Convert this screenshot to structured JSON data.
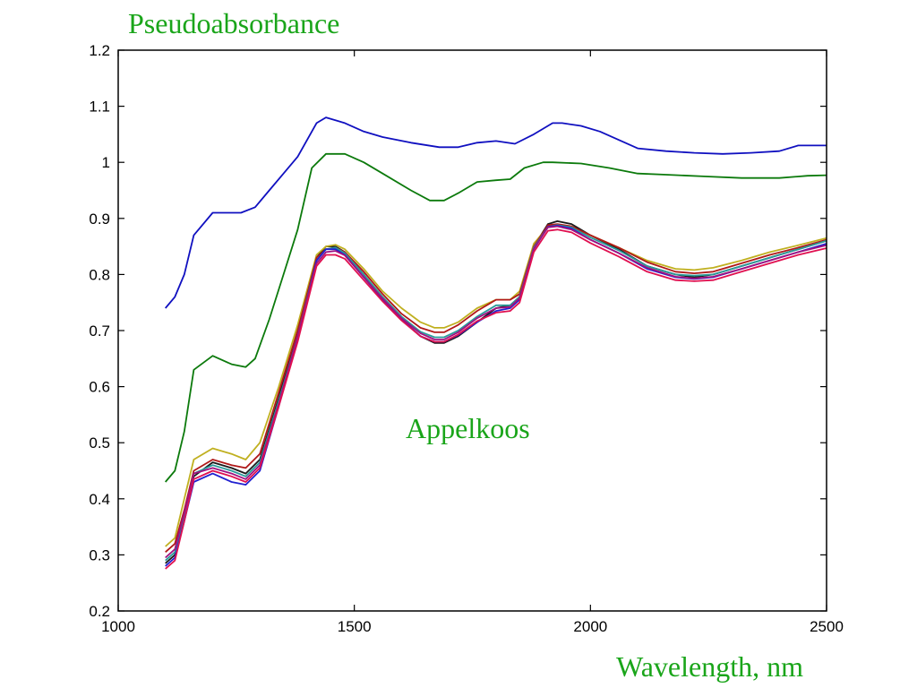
{
  "chart_data": {
    "type": "line",
    "ylabel": "Pseudoabsorbance",
    "xlabel": "Wavelength, nm",
    "annotation": "Appelkoos",
    "xlim": [
      1000,
      2500
    ],
    "ylim": [
      0.2,
      1.2
    ],
    "x_ticks": [
      "1000",
      "1500",
      "2000",
      "2500"
    ],
    "y_ticks": [
      "0.2",
      "0.3",
      "0.4",
      "0.5",
      "0.6",
      "0.7",
      "0.8",
      "0.9",
      "1",
      "1.1",
      "1.2"
    ],
    "x_tick_values": [
      1000,
      1500,
      2000,
      2500
    ],
    "y_tick_values": [
      0.2,
      0.3,
      0.4,
      0.5,
      0.6,
      0.7,
      0.8,
      0.9,
      1.0,
      1.1,
      1.2
    ],
    "grid": false,
    "colors": {
      "text_accent": "#1aa51a",
      "axis": "#000000"
    },
    "series": [
      {
        "color": "#1010c0",
        "x": [
          1100,
          1120,
          1140,
          1160,
          1200,
          1260,
          1290,
          1320,
          1350,
          1380,
          1420,
          1440,
          1480,
          1520,
          1560,
          1620,
          1680,
          1720,
          1760,
          1800,
          1840,
          1880,
          1920,
          1940,
          1980,
          2020,
          2060,
          2100,
          2160,
          2220,
          2280,
          2340,
          2400,
          2440,
          2500
        ],
        "y": [
          0.74,
          0.76,
          0.8,
          0.87,
          0.91,
          0.91,
          0.92,
          0.95,
          0.98,
          1.01,
          1.07,
          1.08,
          1.07,
          1.055,
          1.045,
          1.035,
          1.027,
          1.027,
          1.035,
          1.038,
          1.033,
          1.05,
          1.07,
          1.07,
          1.065,
          1.055,
          1.04,
          1.025,
          1.02,
          1.017,
          1.015,
          1.017,
          1.02,
          1.03,
          1.03
        ]
      },
      {
        "color": "#0c7a0c",
        "x": [
          1100,
          1120,
          1140,
          1160,
          1200,
          1240,
          1270,
          1290,
          1320,
          1350,
          1380,
          1410,
          1440,
          1480,
          1520,
          1560,
          1620,
          1660,
          1690,
          1720,
          1760,
          1800,
          1830,
          1860,
          1900,
          1920,
          1980,
          2040,
          2100,
          2160,
          2240,
          2320,
          2400,
          2460,
          2500
        ],
        "y": [
          0.43,
          0.45,
          0.52,
          0.63,
          0.655,
          0.64,
          0.635,
          0.65,
          0.72,
          0.8,
          0.88,
          0.99,
          1.015,
          1.015,
          1.0,
          0.98,
          0.95,
          0.932,
          0.932,
          0.945,
          0.965,
          0.968,
          0.97,
          0.99,
          1.0,
          1.0,
          0.998,
          0.99,
          0.98,
          0.978,
          0.975,
          0.972,
          0.972,
          0.976,
          0.977
        ]
      },
      {
        "color": "#1a1a1a",
        "x": [
          1100,
          1120,
          1140,
          1160,
          1200,
          1240,
          1270,
          1300,
          1340,
          1380,
          1420,
          1440,
          1460,
          1480,
          1520,
          1560,
          1600,
          1640,
          1670,
          1690,
          1720,
          1760,
          1800,
          1830,
          1850,
          1880,
          1910,
          1930,
          1960,
          2000,
          2060,
          2120,
          2180,
          2220,
          2260,
          2320,
          2380,
          2440,
          2500
        ],
        "y": [
          0.285,
          0.3,
          0.37,
          0.44,
          0.465,
          0.455,
          0.445,
          0.47,
          0.58,
          0.7,
          0.83,
          0.85,
          0.85,
          0.84,
          0.8,
          0.755,
          0.72,
          0.69,
          0.678,
          0.678,
          0.69,
          0.715,
          0.74,
          0.745,
          0.76,
          0.85,
          0.89,
          0.895,
          0.89,
          0.87,
          0.845,
          0.815,
          0.8,
          0.795,
          0.8,
          0.815,
          0.83,
          0.845,
          0.86
        ]
      },
      {
        "color": "#c0b020",
        "x": [
          1100,
          1120,
          1140,
          1160,
          1200,
          1240,
          1270,
          1300,
          1340,
          1380,
          1420,
          1440,
          1460,
          1480,
          1520,
          1560,
          1600,
          1640,
          1670,
          1690,
          1720,
          1760,
          1800,
          1830,
          1850,
          1880,
          1910,
          1930,
          1960,
          2000,
          2060,
          2120,
          2180,
          2220,
          2260,
          2320,
          2380,
          2440,
          2500
        ],
        "y": [
          0.315,
          0.33,
          0.4,
          0.47,
          0.49,
          0.48,
          0.47,
          0.5,
          0.6,
          0.71,
          0.835,
          0.85,
          0.853,
          0.845,
          0.81,
          0.77,
          0.74,
          0.715,
          0.705,
          0.705,
          0.715,
          0.74,
          0.755,
          0.755,
          0.77,
          0.855,
          0.885,
          0.888,
          0.885,
          0.87,
          0.848,
          0.825,
          0.81,
          0.808,
          0.812,
          0.825,
          0.84,
          0.852,
          0.865
        ]
      },
      {
        "color": "#b01818",
        "x": [
          1100,
          1120,
          1140,
          1160,
          1200,
          1240,
          1270,
          1300,
          1340,
          1380,
          1420,
          1440,
          1460,
          1480,
          1520,
          1560,
          1600,
          1640,
          1670,
          1690,
          1720,
          1760,
          1800,
          1830,
          1850,
          1880,
          1910,
          1930,
          1960,
          2000,
          2060,
          2120,
          2180,
          2220,
          2260,
          2320,
          2380,
          2440,
          2500
        ],
        "y": [
          0.305,
          0.32,
          0.38,
          0.45,
          0.47,
          0.46,
          0.455,
          0.48,
          0.59,
          0.7,
          0.83,
          0.845,
          0.848,
          0.84,
          0.805,
          0.765,
          0.73,
          0.705,
          0.697,
          0.697,
          0.71,
          0.735,
          0.755,
          0.755,
          0.765,
          0.85,
          0.888,
          0.89,
          0.886,
          0.87,
          0.848,
          0.822,
          0.805,
          0.802,
          0.805,
          0.82,
          0.835,
          0.848,
          0.862
        ]
      },
      {
        "color": "#2a9a9a",
        "x": [
          1100,
          1120,
          1140,
          1160,
          1200,
          1240,
          1270,
          1300,
          1340,
          1380,
          1420,
          1440,
          1460,
          1480,
          1520,
          1560,
          1600,
          1640,
          1670,
          1690,
          1720,
          1760,
          1800,
          1830,
          1850,
          1880,
          1910,
          1930,
          1960,
          2000,
          2060,
          2120,
          2180,
          2220,
          2260,
          2320,
          2380,
          2440,
          2500
        ],
        "y": [
          0.29,
          0.305,
          0.37,
          0.445,
          0.46,
          0.45,
          0.44,
          0.465,
          0.575,
          0.69,
          0.825,
          0.845,
          0.848,
          0.838,
          0.8,
          0.76,
          0.725,
          0.698,
          0.688,
          0.688,
          0.7,
          0.725,
          0.745,
          0.745,
          0.76,
          0.848,
          0.885,
          0.888,
          0.884,
          0.866,
          0.843,
          0.815,
          0.8,
          0.798,
          0.8,
          0.815,
          0.83,
          0.845,
          0.86
        ]
      },
      {
        "color": "#2020d0",
        "x": [
          1100,
          1120,
          1140,
          1160,
          1200,
          1240,
          1270,
          1300,
          1340,
          1380,
          1420,
          1440,
          1460,
          1480,
          1520,
          1560,
          1600,
          1640,
          1670,
          1690,
          1720,
          1760,
          1800,
          1830,
          1850,
          1880,
          1910,
          1930,
          1960,
          2000,
          2060,
          2120,
          2180,
          2220,
          2260,
          2320,
          2380,
          2440,
          2500
        ],
        "y": [
          0.28,
          0.295,
          0.36,
          0.43,
          0.445,
          0.43,
          0.425,
          0.45,
          0.565,
          0.685,
          0.825,
          0.845,
          0.845,
          0.835,
          0.795,
          0.755,
          0.72,
          0.69,
          0.68,
          0.68,
          0.692,
          0.715,
          0.735,
          0.74,
          0.755,
          0.845,
          0.885,
          0.887,
          0.882,
          0.862,
          0.838,
          0.81,
          0.795,
          0.792,
          0.795,
          0.81,
          0.825,
          0.84,
          0.855
        ]
      },
      {
        "color": "#a01080",
        "x": [
          1100,
          1120,
          1140,
          1160,
          1200,
          1240,
          1270,
          1300,
          1340,
          1380,
          1420,
          1440,
          1460,
          1480,
          1520,
          1560,
          1600,
          1640,
          1670,
          1690,
          1720,
          1760,
          1800,
          1830,
          1850,
          1880,
          1910,
          1930,
          1960,
          2000,
          2060,
          2120,
          2180,
          2220,
          2260,
          2320,
          2380,
          2440,
          2500
        ],
        "y": [
          0.295,
          0.31,
          0.375,
          0.445,
          0.455,
          0.445,
          0.435,
          0.46,
          0.57,
          0.69,
          0.82,
          0.84,
          0.842,
          0.834,
          0.795,
          0.757,
          0.722,
          0.695,
          0.684,
          0.684,
          0.697,
          0.722,
          0.74,
          0.742,
          0.758,
          0.846,
          0.884,
          0.886,
          0.88,
          0.862,
          0.838,
          0.812,
          0.796,
          0.793,
          0.796,
          0.81,
          0.825,
          0.84,
          0.852
        ]
      },
      {
        "color": "#e01050",
        "x": [
          1100,
          1120,
          1140,
          1160,
          1200,
          1240,
          1270,
          1300,
          1340,
          1380,
          1420,
          1440,
          1460,
          1480,
          1520,
          1560,
          1600,
          1640,
          1670,
          1690,
          1720,
          1760,
          1800,
          1830,
          1850,
          1880,
          1910,
          1930,
          1960,
          2000,
          2060,
          2120,
          2180,
          2220,
          2260,
          2320,
          2380,
          2440,
          2500
        ],
        "y": [
          0.275,
          0.29,
          0.36,
          0.435,
          0.45,
          0.44,
          0.43,
          0.455,
          0.565,
          0.68,
          0.815,
          0.835,
          0.835,
          0.828,
          0.79,
          0.752,
          0.718,
          0.69,
          0.68,
          0.68,
          0.693,
          0.717,
          0.732,
          0.735,
          0.75,
          0.84,
          0.878,
          0.88,
          0.875,
          0.856,
          0.832,
          0.805,
          0.79,
          0.788,
          0.79,
          0.805,
          0.82,
          0.835,
          0.847
        ]
      }
    ]
  }
}
